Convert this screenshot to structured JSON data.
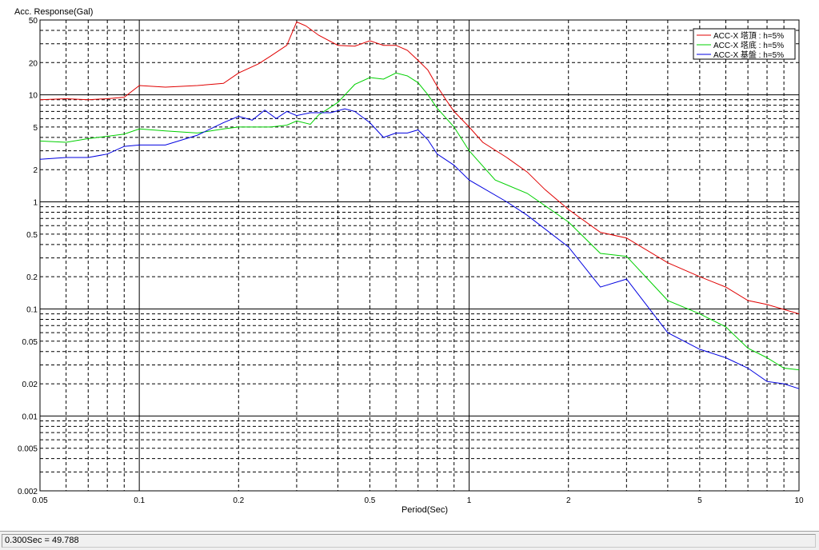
{
  "status": {
    "text": "0.300Sec = 49.788"
  },
  "colors": {
    "red": "#e00000",
    "green": "#00d000",
    "blue": "#0000e0",
    "grid": "#000000"
  },
  "chart_data": {
    "type": "line",
    "title": "",
    "ylabel": "Acc. Response(Gal)",
    "xlabel": "Period(Sec)",
    "xscale": "log",
    "yscale": "log",
    "xlim": [
      0.05,
      10
    ],
    "ylim": [
      0.002,
      50
    ],
    "grid": true,
    "legend_position": "top-right",
    "x_ticks": [
      "0.05",
      "0.1",
      "0.2",
      "0.5",
      "1",
      "2",
      "5",
      "10"
    ],
    "y_ticks": [
      "50",
      "20",
      "10",
      "5",
      "2",
      "1",
      "0.5",
      "0.2",
      "0.1",
      "0.05",
      "0.02",
      "0.01",
      "0.005",
      "0.002"
    ],
    "series": [
      {
        "name": "ACC-X 塔頂 : h=5%",
        "color": "#e00000",
        "points": [
          [
            0.05,
            9
          ],
          [
            0.06,
            9.2
          ],
          [
            0.07,
            9.0
          ],
          [
            0.08,
            9.2
          ],
          [
            0.09,
            9.5
          ],
          [
            0.1,
            12.2
          ],
          [
            0.12,
            11.8
          ],
          [
            0.15,
            12.2
          ],
          [
            0.18,
            12.8
          ],
          [
            0.2,
            16
          ],
          [
            0.23,
            19.5
          ],
          [
            0.25,
            23
          ],
          [
            0.28,
            29
          ],
          [
            0.3,
            48
          ],
          [
            0.32,
            44
          ],
          [
            0.35,
            36
          ],
          [
            0.4,
            29
          ],
          [
            0.45,
            28.5
          ],
          [
            0.5,
            32
          ],
          [
            0.55,
            29
          ],
          [
            0.6,
            29
          ],
          [
            0.65,
            26
          ],
          [
            0.7,
            21
          ],
          [
            0.75,
            17
          ],
          [
            0.8,
            12
          ],
          [
            0.85,
            9
          ],
          [
            0.9,
            7
          ],
          [
            1.0,
            5
          ],
          [
            1.1,
            3.6
          ],
          [
            1.3,
            2.6
          ],
          [
            1.5,
            1.9
          ],
          [
            1.7,
            1.3
          ],
          [
            2.0,
            0.85
          ],
          [
            2.5,
            0.52
          ],
          [
            3.0,
            0.46
          ],
          [
            4.0,
            0.27
          ],
          [
            5.0,
            0.2
          ],
          [
            6.0,
            0.16
          ],
          [
            7.0,
            0.12
          ],
          [
            8.0,
            0.11
          ],
          [
            10.0,
            0.09
          ]
        ]
      },
      {
        "name": "ACC-X 塔底 : h=5%",
        "color": "#00d000",
        "points": [
          [
            0.05,
            3.7
          ],
          [
            0.06,
            3.6
          ],
          [
            0.07,
            3.9
          ],
          [
            0.08,
            4.1
          ],
          [
            0.09,
            4.3
          ],
          [
            0.1,
            4.8
          ],
          [
            0.12,
            4.6
          ],
          [
            0.15,
            4.4
          ],
          [
            0.18,
            4.8
          ],
          [
            0.2,
            5.0
          ],
          [
            0.25,
            5.0
          ],
          [
            0.28,
            5.2
          ],
          [
            0.3,
            5.7
          ],
          [
            0.33,
            5.3
          ],
          [
            0.35,
            6.5
          ],
          [
            0.4,
            8.5
          ],
          [
            0.45,
            12.5
          ],
          [
            0.5,
            14.5
          ],
          [
            0.55,
            14
          ],
          [
            0.6,
            16
          ],
          [
            0.65,
            15
          ],
          [
            0.7,
            13
          ],
          [
            0.75,
            10
          ],
          [
            0.8,
            7.5
          ],
          [
            0.9,
            5
          ],
          [
            1.0,
            3.0
          ],
          [
            1.2,
            1.6
          ],
          [
            1.5,
            1.2
          ],
          [
            2.0,
            0.65
          ],
          [
            2.5,
            0.33
          ],
          [
            3.0,
            0.31
          ],
          [
            4.0,
            0.12
          ],
          [
            5.0,
            0.09
          ],
          [
            6.0,
            0.068
          ],
          [
            7.0,
            0.043
          ],
          [
            8.0,
            0.035
          ],
          [
            9.0,
            0.028
          ],
          [
            10.0,
            0.027
          ]
        ]
      },
      {
        "name": "ACC-X 基盤 : h=5%",
        "color": "#0000e0",
        "points": [
          [
            0.05,
            2.5
          ],
          [
            0.06,
            2.6
          ],
          [
            0.07,
            2.6
          ],
          [
            0.08,
            2.8
          ],
          [
            0.09,
            3.3
          ],
          [
            0.1,
            3.4
          ],
          [
            0.12,
            3.4
          ],
          [
            0.15,
            4.2
          ],
          [
            0.18,
            5.5
          ],
          [
            0.2,
            6.3
          ],
          [
            0.22,
            5.8
          ],
          [
            0.24,
            7.2
          ],
          [
            0.26,
            6.0
          ],
          [
            0.28,
            7.0
          ],
          [
            0.3,
            6.4
          ],
          [
            0.33,
            6.8
          ],
          [
            0.38,
            6.8
          ],
          [
            0.42,
            7.4
          ],
          [
            0.45,
            7.0
          ],
          [
            0.5,
            5.5
          ],
          [
            0.55,
            4.0
          ],
          [
            0.6,
            4.4
          ],
          [
            0.65,
            4.4
          ],
          [
            0.7,
            4.7
          ],
          [
            0.75,
            3.8
          ],
          [
            0.8,
            2.8
          ],
          [
            0.9,
            2.2
          ],
          [
            1.0,
            1.6
          ],
          [
            1.3,
            1.0
          ],
          [
            1.5,
            0.75
          ],
          [
            2.0,
            0.38
          ],
          [
            2.5,
            0.16
          ],
          [
            3.0,
            0.19
          ],
          [
            4.0,
            0.06
          ],
          [
            5.0,
            0.042
          ],
          [
            6.0,
            0.035
          ],
          [
            7.0,
            0.028
          ],
          [
            8.0,
            0.021
          ],
          [
            9.0,
            0.02
          ],
          [
            10.0,
            0.018
          ]
        ]
      }
    ]
  }
}
